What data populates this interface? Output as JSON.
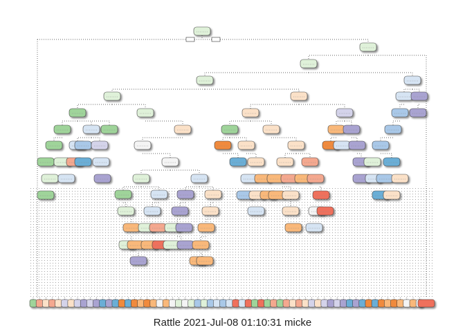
{
  "caption": "Rattle 2021-Jul-08 01:10:31 micke",
  "palette": {
    "green": "#9fd49a",
    "light_green": "#dff1d9",
    "light_blue": "#d6e4f3",
    "mid_blue": "#a9c8e8",
    "blue": "#6baed6",
    "light_orange": "#fbe1c8",
    "orange": "#f9b87a",
    "dark_orange": "#f08a3e",
    "salmon": "#f4a88f",
    "red": "#ef6f5c",
    "light_purple": "#d4d3ea",
    "purple": "#a9a3d1",
    "white": "#f4f4f4"
  }
}
